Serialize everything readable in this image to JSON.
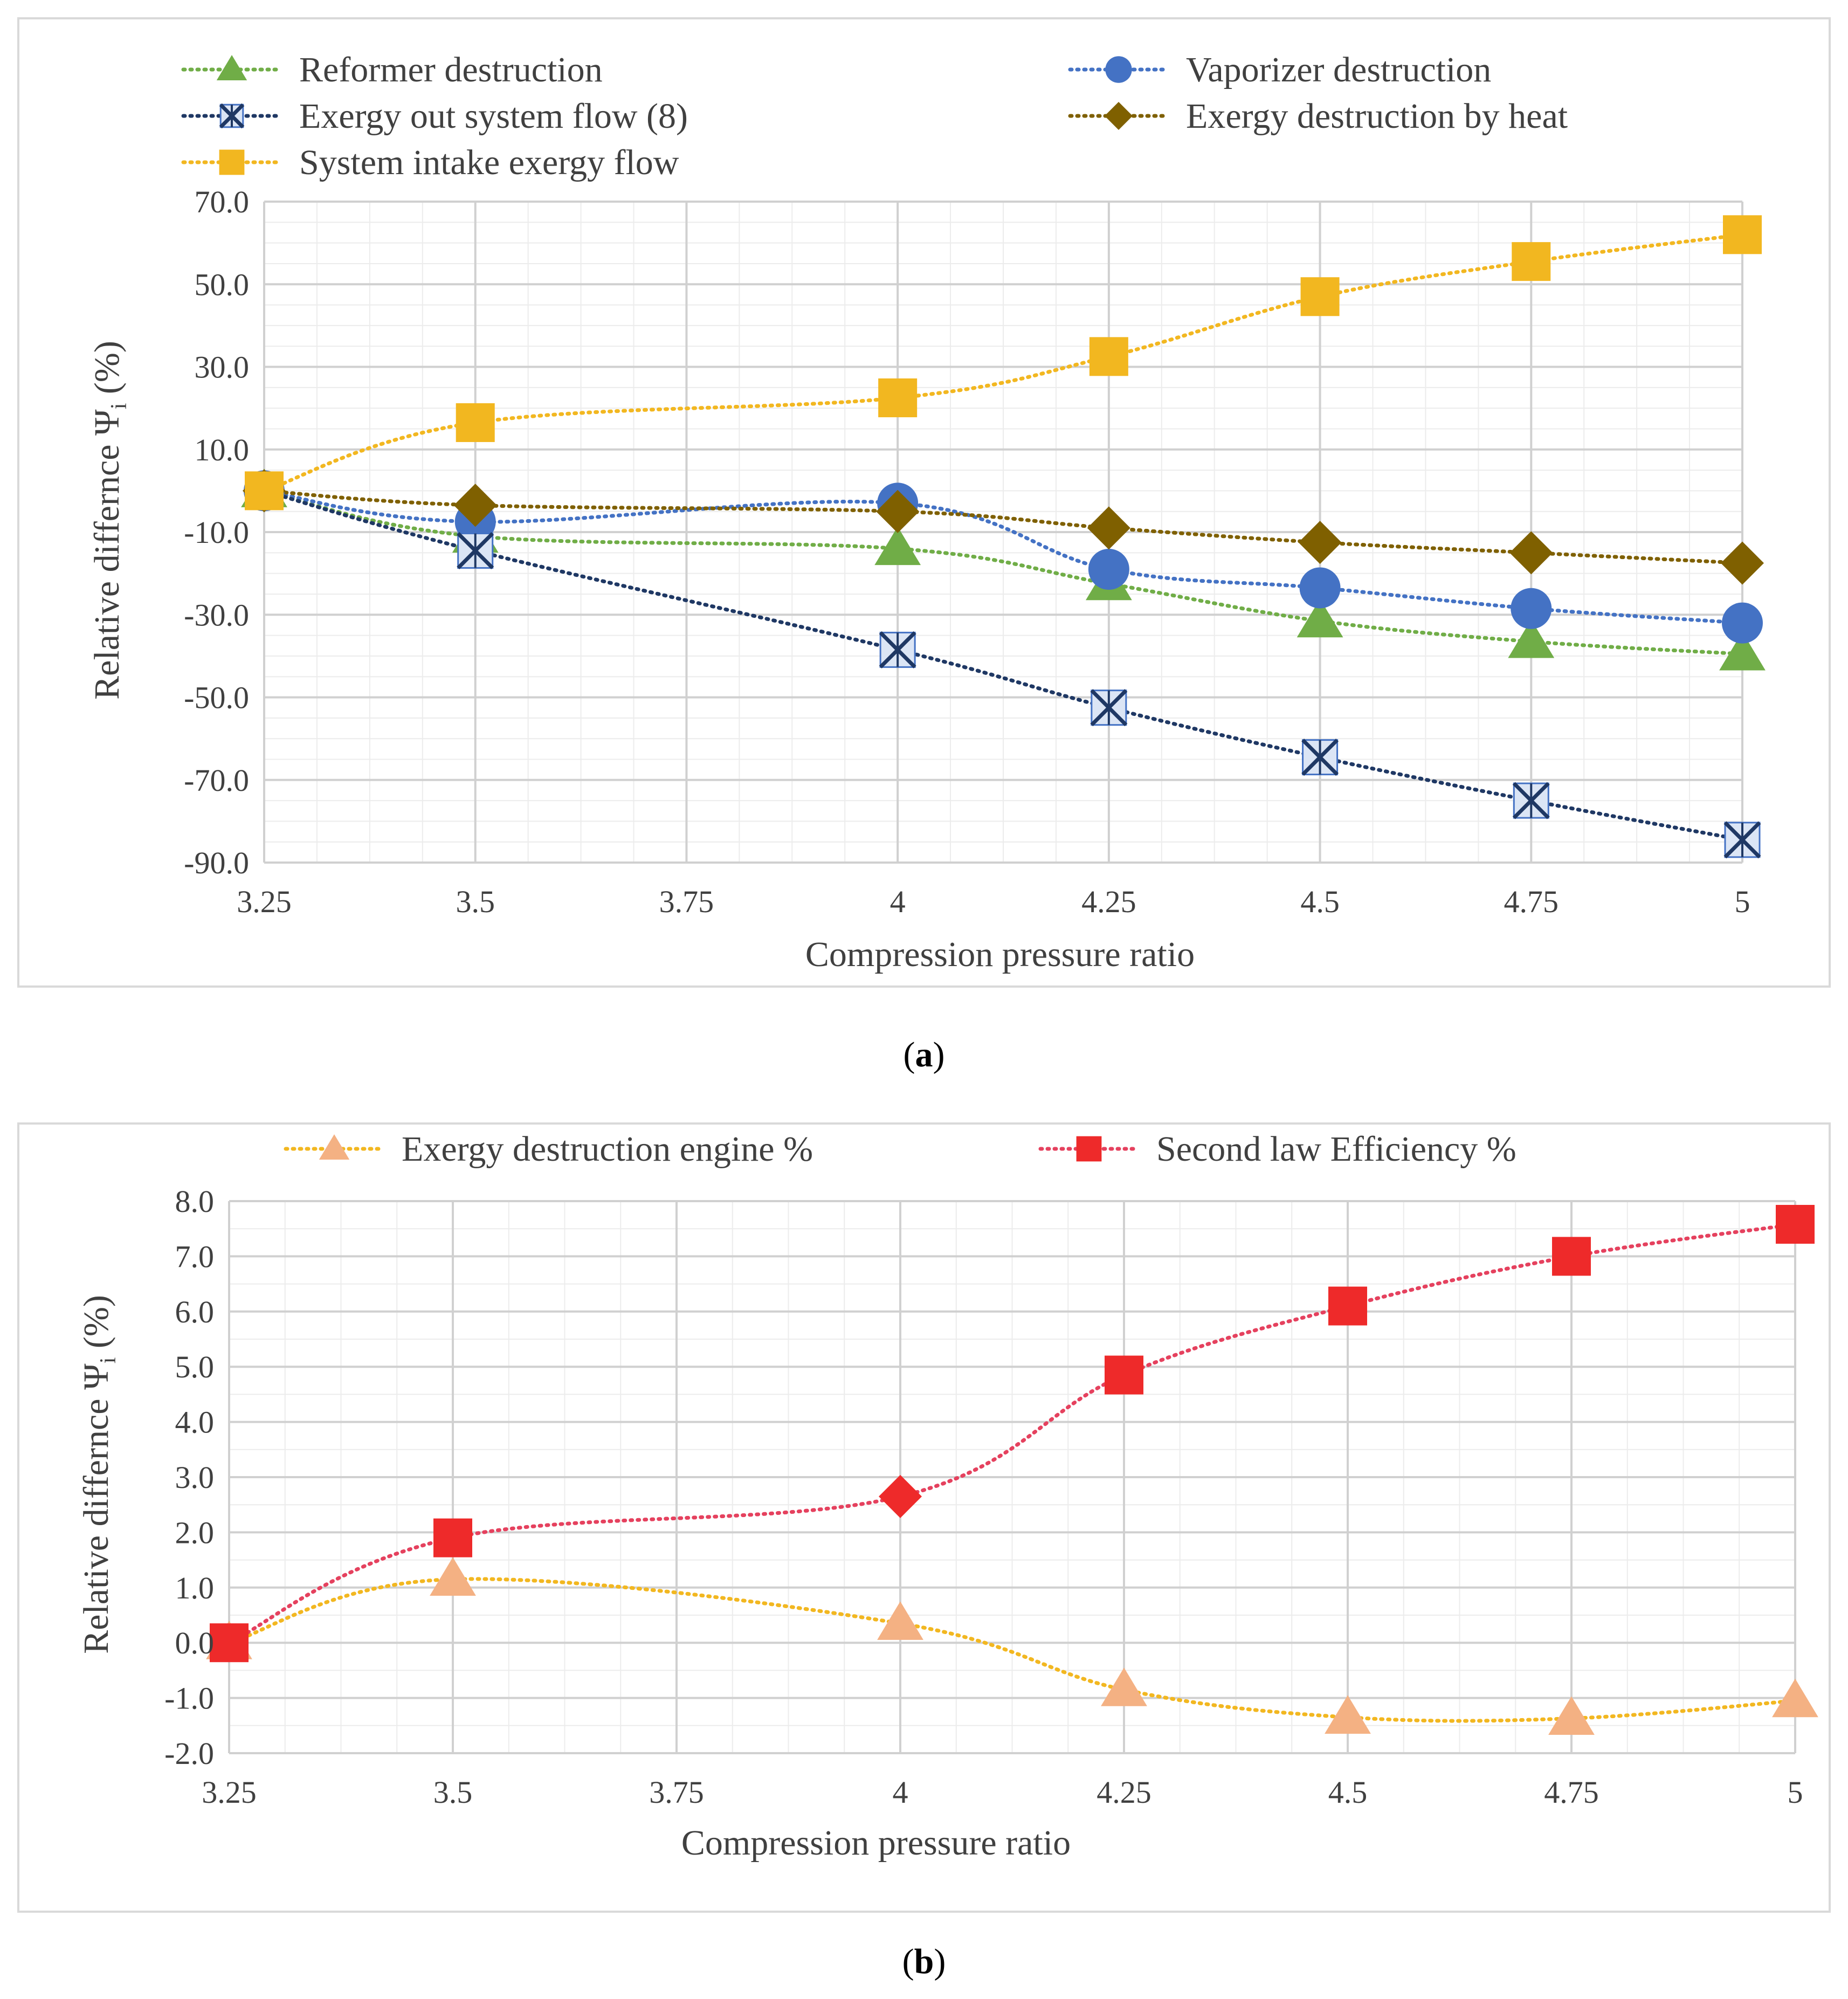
{
  "chart_data": [
    {
      "type": "line",
      "panel_label": "a",
      "xlabel": "Compression pressure ratio",
      "ylabel": "Relative differnce Ψ",
      "ylabel_sub": "i",
      "ylabel_suffix": "(%)",
      "x_ticks": [
        "3.25",
        "3.5",
        "3.75",
        "4",
        "4.25",
        "4.5",
        "4.75",
        "5"
      ],
      "xlim": [
        3.25,
        5
      ],
      "ylim": [
        -90,
        70
      ],
      "y_ticks": [
        "70.0",
        "50.0",
        "30.0",
        "10.0",
        "-10.0",
        "-30.0",
        "-50.0",
        "-70.0",
        "-90.0"
      ],
      "series": [
        {
          "name": "Reformer destruction",
          "color": "#70ad47",
          "marker": "triangle",
          "x": [
            3.25,
            3.5,
            4,
            4.25,
            4.5,
            4.75,
            5
          ],
          "values": [
            0,
            -11,
            -14,
            -22.5,
            -31.5,
            -36.5,
            -39.5
          ]
        },
        {
          "name": "Vaporizer destruction",
          "color": "#4472c4",
          "marker": "circle",
          "x": [
            3.25,
            3.5,
            4,
            4.25,
            4.5,
            4.75,
            5
          ],
          "values": [
            0,
            -7.5,
            -3,
            -19,
            -23.5,
            -28.5,
            -32
          ]
        },
        {
          "name": "Exergy out system flow (8)",
          "color": "#1f3864",
          "marker": "xbox",
          "x": [
            3.25,
            3.5,
            4,
            4.25,
            4.5,
            4.75,
            5
          ],
          "values": [
            0,
            -14.5,
            -38.5,
            -52.5,
            -64.5,
            -75,
            -84.5
          ]
        },
        {
          "name": "Exergy destruction by heat",
          "color": "#7f6000",
          "marker": "diamond",
          "x": [
            3.25,
            3.5,
            4,
            4.25,
            4.5,
            4.75,
            5
          ],
          "values": [
            0,
            -3.5,
            -5,
            -9,
            -12.5,
            -15,
            -17.5
          ]
        },
        {
          "name": "System intake exergy flow",
          "color": "#f2b720",
          "marker": "square",
          "x": [
            3.25,
            3.5,
            4,
            4.25,
            4.5,
            4.75,
            5
          ],
          "values": [
            0,
            16.5,
            22.5,
            32.5,
            47,
            55.5,
            62
          ]
        }
      ]
    },
    {
      "type": "line",
      "panel_label": "b",
      "xlabel": "Compression pressure ratio",
      "ylabel": "Relative differnce Ψ",
      "ylabel_sub": "i",
      "ylabel_suffix": "(%)",
      "x_ticks": [
        "3.25",
        "3.5",
        "3.75",
        "4",
        "4.25",
        "4.5",
        "4.75",
        "5"
      ],
      "xlim": [
        3.25,
        5
      ],
      "ylim": [
        -2,
        8
      ],
      "y_ticks": [
        "8.0",
        "7.0",
        "6.0",
        "5.0",
        "4.0",
        "3.0",
        "2.0",
        "1.0",
        "0.0",
        "-1.0",
        "-2.0"
      ],
      "series": [
        {
          "name": "Exergy destruction engine %",
          "color": "#f2b720",
          "marker_fill": "#f4b183",
          "marker": "triangle",
          "x": [
            3.25,
            3.5,
            4,
            4.25,
            4.5,
            4.75,
            5
          ],
          "values": [
            0,
            1.15,
            0.35,
            -0.85,
            -1.35,
            -1.37,
            -1.05
          ]
        },
        {
          "name": "Second law Efficiency %",
          "color": "#e5415e",
          "marker_fill": "#ee2a2a",
          "marker": "square",
          "x": [
            3.25,
            3.5,
            4,
            4.25,
            4.5,
            4.75,
            5
          ],
          "values": [
            0,
            1.9,
            2.65,
            4.85,
            6.1,
            7.0,
            7.58
          ]
        }
      ]
    }
  ]
}
